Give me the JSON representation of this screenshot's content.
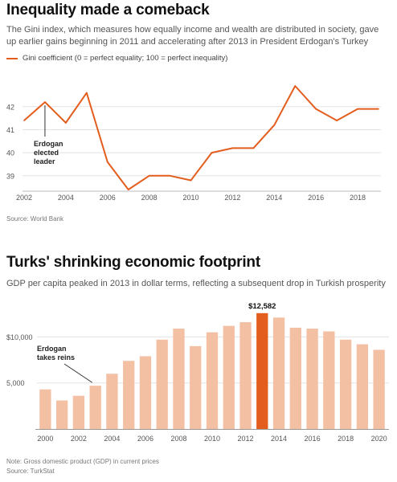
{
  "chart1": {
    "title": "Inequality made a comeback",
    "subtitle": "The Gini index, which measures how equally income and wealth are distributed in society, gave up earlier gains beginning in 2011 and accelerating after 2013 in President Erdogan's Turkey",
    "legend_label": "Gini coefficient (0 = perfect equality; 100 = perfect inequality)",
    "annotation_lines": [
      "Erdogan",
      "elected",
      "leader"
    ],
    "source": "Source: World Bank",
    "line_color": "#e35e1e"
  },
  "chart2": {
    "title": "Turks' shrinking economic footprint",
    "subtitle": "GDP per capita peaked in 2013 in dollar terms, reflecting a subsequent drop in Turkish prosperity",
    "annotation_lines": [
      "Erdogan",
      "takes reins"
    ],
    "peak_label": "$12,582",
    "note": "Note: Gross domestic product (GDP) in current prices",
    "source": "Source: TurkStat",
    "bar_color": "#f4c0a4",
    "highlight_color": "#e35e1e"
  },
  "chart_data": [
    {
      "type": "line",
      "title": "Inequality made a comeback",
      "series": [
        {
          "name": "Gini coefficient (0 = perfect equality; 100 = perfect inequality)",
          "x": [
            2002,
            2003,
            2004,
            2005,
            2006,
            2007,
            2008,
            2009,
            2010,
            2011,
            2012,
            2013,
            2014,
            2015,
            2016,
            2017,
            2018,
            2019
          ],
          "values": [
            41.4,
            42.2,
            41.3,
            42.6,
            39.6,
            38.4,
            39.0,
            39.0,
            38.8,
            40.0,
            40.2,
            40.2,
            41.2,
            42.9,
            41.9,
            41.4,
            41.9,
            41.9
          ]
        }
      ],
      "xticks": [
        "2002",
        "2004",
        "2006",
        "2008",
        "2010",
        "2012",
        "2014",
        "2016",
        "2018"
      ],
      "yticks": [
        "39",
        "40",
        "41",
        "42"
      ],
      "xlim": [
        2002,
        2019
      ],
      "ylim": [
        38.4,
        42.9
      ],
      "grid": true
    },
    {
      "type": "bar",
      "title": "Turks' shrinking economic footprint",
      "categories": [
        "2000",
        "2001",
        "2002",
        "2003",
        "2004",
        "2005",
        "2006",
        "2007",
        "2008",
        "2009",
        "2010",
        "2011",
        "2012",
        "2013",
        "2014",
        "2015",
        "2016",
        "2017",
        "2018",
        "2019",
        "2020"
      ],
      "values": [
        4300,
        3100,
        3600,
        4700,
        6000,
        7400,
        7900,
        9700,
        10900,
        9000,
        10500,
        11200,
        11600,
        12582,
        12100,
        11000,
        10900,
        10600,
        9700,
        9200,
        8600
      ],
      "highlight_index": 13,
      "xticks": [
        "2000",
        "2002",
        "2004",
        "2006",
        "2008",
        "2010",
        "2012",
        "2014",
        "2016",
        "2018",
        "2020"
      ],
      "yticks": [
        "5,000",
        "$10,000"
      ],
      "ylim": [
        0,
        13000
      ],
      "grid": true
    }
  ]
}
